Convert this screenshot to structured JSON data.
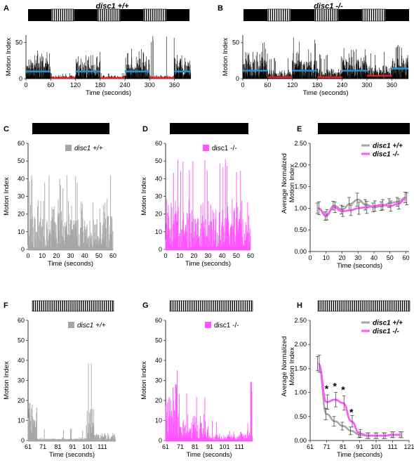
{
  "figure": {
    "panels": [
      {
        "letter": "A",
        "title": "disc1 +/+"
      },
      {
        "letter": "B",
        "title": "disc1 -/-"
      },
      {
        "letter": "C"
      },
      {
        "letter": "D"
      },
      {
        "letter": "E"
      },
      {
        "letter": "F"
      },
      {
        "letter": "G"
      },
      {
        "letter": "H"
      }
    ]
  },
  "colors": {
    "wt": "#a6a6a6",
    "mut": "#ff55ff",
    "light_bar": "#1e90d8",
    "dark_bar": "#e02020"
  },
  "chart_data": [
    {
      "id": "A",
      "type": "bar",
      "title": "disc1 +/+",
      "xlabel": "Time (seconds)",
      "ylabel": "Motion Index",
      "xlim": [
        0,
        400
      ],
      "ylim": [
        0,
        60
      ],
      "xticks": [
        "0",
        "60",
        "120",
        "180",
        "240",
        "300",
        "360"
      ],
      "yticks": [
        "0",
        "50"
      ],
      "stimulus": [
        "dark",
        "flicker",
        "dark",
        "flicker",
        "dark",
        "flicker",
        "dark"
      ],
      "epoch_means": [
        {
          "start": 0,
          "end": 60,
          "value": 10,
          "stim": "dark"
        },
        {
          "start": 60,
          "end": 120,
          "value": 1,
          "stim": "flicker"
        },
        {
          "start": 120,
          "end": 180,
          "value": 10,
          "stim": "dark"
        },
        {
          "start": 180,
          "end": 240,
          "value": 1,
          "stim": "flicker"
        },
        {
          "start": 240,
          "end": 300,
          "value": 10,
          "stim": "dark"
        },
        {
          "start": 300,
          "end": 360,
          "value": 1,
          "stim": "flicker"
        },
        {
          "start": 360,
          "end": 400,
          "value": 10,
          "stim": "dark"
        }
      ],
      "series_profile": [
        {
          "start": 0,
          "end": 60,
          "level": 22,
          "peak": 40
        },
        {
          "start": 60,
          "end": 120,
          "level": 3,
          "peak": 8
        },
        {
          "start": 120,
          "end": 180,
          "level": 20,
          "peak": 38
        },
        {
          "start": 180,
          "end": 240,
          "level": 3,
          "peak": 8
        },
        {
          "start": 240,
          "end": 300,
          "level": 20,
          "peak": 42
        },
        {
          "start": 300,
          "end": 360,
          "level": 3,
          "peak": 60
        },
        {
          "start": 360,
          "end": 400,
          "level": 18,
          "peak": 34
        }
      ]
    },
    {
      "id": "B",
      "type": "bar",
      "title": "disc1 -/-",
      "xlabel": "Time (seconds)",
      "ylabel": "Motion Index",
      "xlim": [
        0,
        400
      ],
      "ylim": [
        0,
        60
      ],
      "xticks": [
        "0",
        "60",
        "120",
        "180",
        "240",
        "300",
        "360"
      ],
      "yticks": [
        "0",
        "50"
      ],
      "stimulus": [
        "dark",
        "flicker",
        "dark",
        "flicker",
        "dark",
        "flicker",
        "dark"
      ],
      "epoch_means": [
        {
          "start": 0,
          "end": 60,
          "value": 11,
          "stim": "dark"
        },
        {
          "start": 60,
          "end": 120,
          "value": 2,
          "stim": "flicker"
        },
        {
          "start": 120,
          "end": 180,
          "value": 11,
          "stim": "dark"
        },
        {
          "start": 180,
          "end": 240,
          "value": 2,
          "stim": "flicker"
        },
        {
          "start": 240,
          "end": 300,
          "value": 11,
          "stim": "dark"
        },
        {
          "start": 300,
          "end": 360,
          "value": 4,
          "stim": "flicker"
        },
        {
          "start": 360,
          "end": 400,
          "value": 14,
          "stim": "dark"
        }
      ],
      "series_profile": [
        {
          "start": 0,
          "end": 60,
          "level": 26,
          "peak": 52
        },
        {
          "start": 60,
          "end": 120,
          "level": 8,
          "peak": 30
        },
        {
          "start": 120,
          "end": 180,
          "level": 26,
          "peak": 58
        },
        {
          "start": 180,
          "end": 240,
          "level": 9,
          "peak": 34
        },
        {
          "start": 240,
          "end": 300,
          "level": 26,
          "peak": 52
        },
        {
          "start": 300,
          "end": 360,
          "level": 12,
          "peak": 40
        },
        {
          "start": 360,
          "end": 400,
          "level": 28,
          "peak": 58
        }
      ]
    },
    {
      "id": "C",
      "type": "bar",
      "xlabel": "Time (seconds)",
      "ylabel": "Motion Index",
      "xlim": [
        0,
        60
      ],
      "ylim": [
        0,
        60
      ],
      "xticks": [
        "0",
        "10",
        "20",
        "30",
        "40",
        "50",
        "60"
      ],
      "yticks": [
        "0",
        "10",
        "20",
        "30",
        "40",
        "50",
        "60"
      ],
      "stimulus": [
        "dark"
      ],
      "series": [
        {
          "name": "disc1 +/+",
          "color": "wt"
        }
      ],
      "series_profile": [
        {
          "start": 0,
          "end": 60,
          "level": 18,
          "peak": 42
        }
      ]
    },
    {
      "id": "D",
      "type": "bar",
      "xlabel": "Time (seconds)",
      "ylabel": "Motion Index",
      "xlim": [
        0,
        60
      ],
      "ylim": [
        0,
        60
      ],
      "xticks": [
        "0",
        "10",
        "20",
        "30",
        "40",
        "50",
        "60"
      ],
      "yticks": [
        "0",
        "10",
        "20",
        "30",
        "40",
        "50",
        "60"
      ],
      "stimulus": [
        "dark"
      ],
      "series": [
        {
          "name": "disc1 -/-",
          "color": "mut"
        }
      ],
      "series_profile": [
        {
          "start": 0,
          "end": 60,
          "level": 18,
          "peak": 52
        }
      ]
    },
    {
      "id": "E",
      "type": "line",
      "xlabel": "Time (seconds)",
      "ylabel": "Average Normalized Motion Index",
      "xlim": [
        0,
        62
      ],
      "ylim": [
        0,
        2.5
      ],
      "xticks": [
        "0",
        "10",
        "20",
        "30",
        "40",
        "50",
        "60"
      ],
      "yticks": [
        "0.00",
        "0.50",
        "1.00",
        "1.50",
        "2.00",
        "2.50"
      ],
      "stimulus": [
        "dark"
      ],
      "legend": "top-right",
      "x": [
        5,
        10,
        15,
        20,
        25,
        30,
        35,
        40,
        45,
        50,
        55,
        60
      ],
      "series": [
        {
          "name": "disc1 +/+",
          "color": "wt",
          "values": [
            1.0,
            0.82,
            1.06,
            0.97,
            1.1,
            1.2,
            1.08,
            1.02,
            1.05,
            1.12,
            1.15,
            1.25
          ],
          "err": [
            0.12,
            0.1,
            0.1,
            0.1,
            0.15,
            0.15,
            0.12,
            0.1,
            0.1,
            0.1,
            0.1,
            0.12
          ]
        },
        {
          "name": "disc1 -/-",
          "color": "mut",
          "values": [
            1.0,
            0.85,
            1.02,
            0.93,
            0.95,
            1.0,
            1.02,
            1.05,
            1.08,
            1.05,
            1.1,
            1.22
          ],
          "err": [
            0.15,
            0.12,
            0.12,
            0.12,
            0.12,
            0.14,
            0.14,
            0.12,
            0.12,
            0.12,
            0.12,
            0.14
          ]
        }
      ]
    },
    {
      "id": "F",
      "type": "bar",
      "xlabel": "Time (seconds)",
      "ylabel": "Motion Index",
      "xlim": [
        61,
        120
      ],
      "ylim": [
        0,
        60
      ],
      "xticks": [
        "61",
        "71",
        "81",
        "91",
        "101",
        "111"
      ],
      "yticks": [
        "0",
        "10",
        "20",
        "30",
        "40",
        "50",
        "60"
      ],
      "stimulus": [
        "flicker"
      ],
      "series": [
        {
          "name": "disc1 +/+",
          "color": "wt"
        }
      ],
      "series_profile": [
        {
          "start": 61,
          "end": 67,
          "level": 18,
          "peak": 40
        },
        {
          "start": 67,
          "end": 100,
          "level": 1,
          "peak": 6
        },
        {
          "start": 100,
          "end": 106,
          "level": 10,
          "peak": 42
        },
        {
          "start": 106,
          "end": 120,
          "level": 3,
          "peak": 10
        }
      ]
    },
    {
      "id": "G",
      "type": "bar",
      "xlabel": "Time (seconds)",
      "ylabel": "Motion Index",
      "xlim": [
        61,
        120
      ],
      "ylim": [
        0,
        60
      ],
      "xticks": [
        "61",
        "71",
        "81",
        "91",
        "101",
        "111"
      ],
      "yticks": [
        "0",
        "10",
        "20",
        "30",
        "40",
        "50",
        "60"
      ],
      "stimulus": [
        "flicker"
      ],
      "series": [
        {
          "name": "disc1 -/-",
          "color": "mut"
        }
      ],
      "series_profile": [
        {
          "start": 61,
          "end": 70,
          "level": 22,
          "peak": 60
        },
        {
          "start": 70,
          "end": 90,
          "level": 9,
          "peak": 26
        },
        {
          "start": 90,
          "end": 118,
          "level": 3,
          "peak": 10
        },
        {
          "start": 118,
          "end": 120,
          "level": 2,
          "peak": 30
        }
      ]
    },
    {
      "id": "H",
      "type": "line",
      "xlabel": "Time (seconds)",
      "ylabel": "Average Normalized Motion Index",
      "xlim": [
        61,
        121
      ],
      "ylim": [
        0,
        2.5
      ],
      "xticks": [
        "61",
        "71",
        "81",
        "91",
        "101",
        "111",
        "121"
      ],
      "yticks": [
        "0.00",
        "0.50",
        "1.00",
        "1.50",
        "2.00",
        "2.50"
      ],
      "stimulus": [
        "flicker"
      ],
      "legend": "top-right",
      "x": [
        66,
        71,
        76,
        81,
        86,
        91,
        96,
        101,
        106,
        111,
        116
      ],
      "series": [
        {
          "name": "disc1 +/+",
          "color": "wt",
          "values": [
            1.6,
            0.55,
            0.4,
            0.3,
            0.2,
            0.12,
            0.1,
            0.1,
            0.1,
            0.12,
            0.12
          ],
          "err": [
            0.15,
            0.12,
            0.1,
            0.08,
            0.08,
            0.06,
            0.06,
            0.06,
            0.06,
            0.06,
            0.06
          ]
        },
        {
          "name": "disc1 -/-",
          "color": "mut",
          "values": [
            1.6,
            0.8,
            0.85,
            0.78,
            0.4,
            0.15,
            0.1,
            0.1,
            0.1,
            0.12,
            0.12
          ],
          "err": [
            0.18,
            0.15,
            0.15,
            0.15,
            0.12,
            0.08,
            0.06,
            0.06,
            0.06,
            0.06,
            0.06
          ]
        }
      ],
      "annotations": [
        {
          "x": 71,
          "text": "*"
        },
        {
          "x": 76,
          "text": "*"
        },
        {
          "x": 81,
          "text": "*"
        },
        {
          "x": 86,
          "text": "*"
        }
      ]
    }
  ]
}
